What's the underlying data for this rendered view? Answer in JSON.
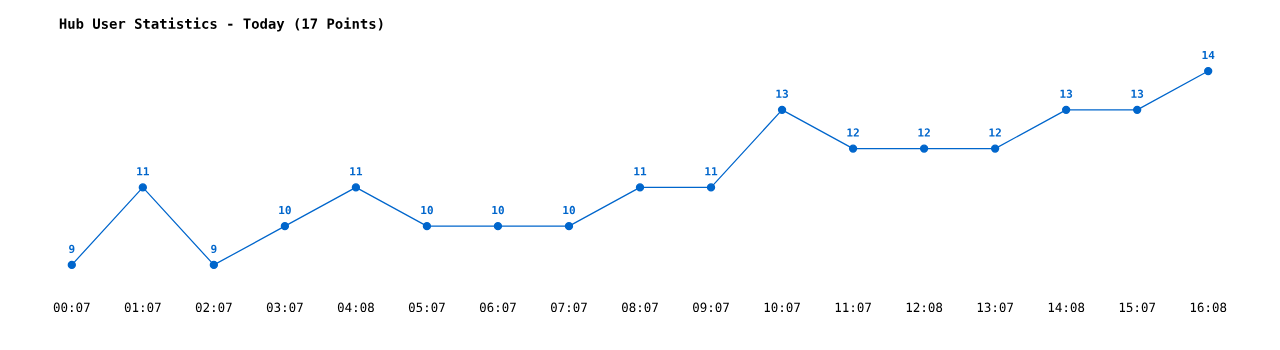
{
  "chart_data": {
    "type": "line",
    "title": "Hub User Statistics - Today (17 Points)",
    "categories": [
      "00:07",
      "01:07",
      "02:07",
      "03:07",
      "04:08",
      "05:07",
      "06:07",
      "07:07",
      "08:07",
      "09:07",
      "10:07",
      "11:07",
      "12:08",
      "13:07",
      "14:08",
      "15:07",
      "16:08"
    ],
    "series": [
      {
        "color": "#0066cc",
        "values": [
          9,
          11,
          9,
          10,
          11,
          10,
          10,
          10,
          11,
          11,
          13,
          12,
          12,
          12,
          13,
          13,
          14
        ]
      }
    ],
    "tick_labels": "x",
    "data_labels": true,
    "marker": "circle",
    "line_style": "solid",
    "grid": false,
    "legend": false
  }
}
